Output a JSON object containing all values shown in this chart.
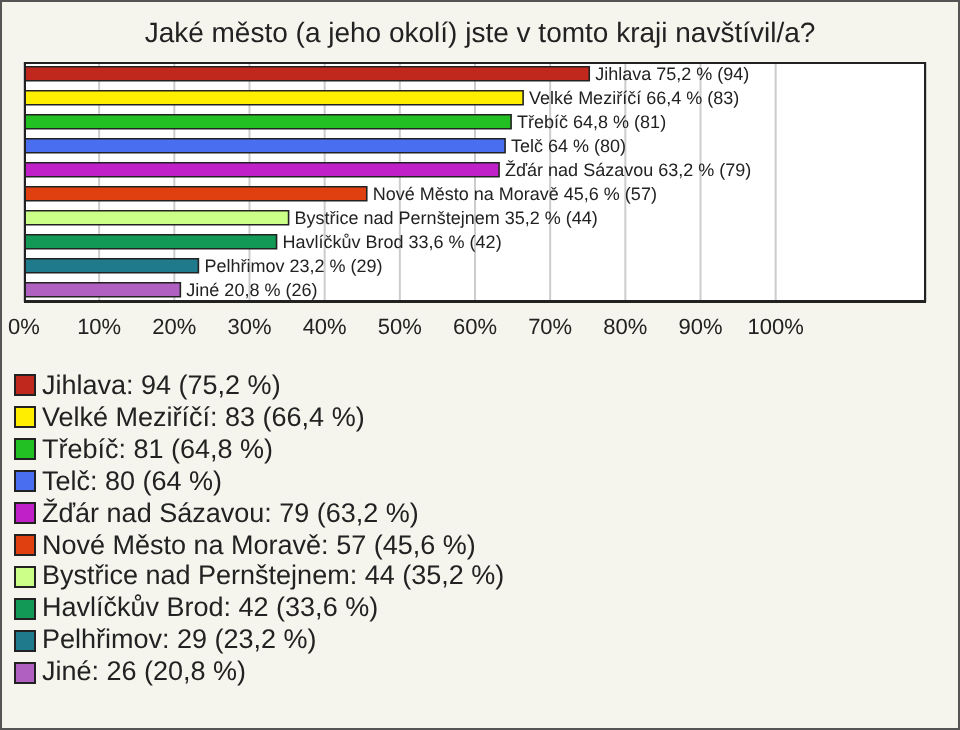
{
  "chart_data": {
    "type": "bar",
    "orientation": "horizontal",
    "stacked": true,
    "title": "Jaké město (a jeho okolí) jste v tomto kraji navštívil/a?",
    "categories": [
      null,
      null,
      null,
      null,
      null,
      null,
      null,
      null,
      null,
      null
    ],
    "series": [
      {
        "name": "Jihlava: 94 (75,2 %)",
        "color": "#c0281e",
        "values": [
          75.2,
          null,
          null,
          null,
          null,
          null,
          null,
          null,
          null,
          null
        ],
        "value_labels": [
          "Jihlava 75,2 % (94)",
          null,
          null,
          null,
          null,
          null,
          null,
          null,
          null,
          null
        ]
      },
      {
        "name": "Velké Meziříčí: 83 (66,4 %)",
        "color": "#ffee00",
        "values": [
          null,
          66.4,
          null,
          null,
          null,
          null,
          null,
          null,
          null,
          null
        ],
        "value_labels": [
          null,
          "Velké Meziříčí 66,4 % (83)",
          null,
          null,
          null,
          null,
          null,
          null,
          null,
          null
        ]
      },
      {
        "name": "Třebíč: 81 (64,8 %)",
        "color": "#22c022",
        "values": [
          null,
          null,
          64.8,
          null,
          null,
          null,
          null,
          null,
          null,
          null
        ],
        "value_labels": [
          null,
          null,
          "Třebíč 64,8 % (81)",
          null,
          null,
          null,
          null,
          null,
          null,
          null
        ]
      },
      {
        "name": "Telč: 80 (64 %)",
        "color": "#4a6ef0",
        "values": [
          null,
          null,
          null,
          64,
          null,
          null,
          null,
          null,
          null,
          null
        ],
        "value_labels": [
          null,
          null,
          null,
          "Telč 64 % (80)",
          null,
          null,
          null,
          null,
          null,
          null
        ]
      },
      {
        "name": "Žďár nad Sázavou: 79 (63,2 %)",
        "color": "#c020c8",
        "values": [
          null,
          null,
          null,
          null,
          63.2,
          null,
          null,
          null,
          null,
          null
        ],
        "value_labels": [
          null,
          null,
          null,
          null,
          "Žďár nad Sázavou 63,2 % (79)",
          null,
          null,
          null,
          null,
          null
        ]
      },
      {
        "name": "Nové Město na Moravě: 57 (45,6 %)",
        "color": "#e04010",
        "values": [
          null,
          null,
          null,
          null,
          null,
          45.6,
          null,
          null,
          null,
          null
        ],
        "value_labels": [
          null,
          null,
          null,
          null,
          null,
          "Nové Město na Moravě 45,6 % (57)",
          null,
          null,
          null,
          null
        ]
      },
      {
        "name": "Bystřice nad Pernštejnem: 44 (35,2 %)",
        "color": "#ccff88",
        "values": [
          null,
          null,
          null,
          null,
          null,
          null,
          35.2,
          null,
          null,
          null
        ],
        "value_labels": [
          null,
          null,
          null,
          null,
          null,
          null,
          "Bystřice nad Pernštejnem 35,2 % (44)",
          null,
          null,
          null
        ]
      },
      {
        "name": "Havlíčkův Brod: 42 (33,6 %)",
        "color": "#119955",
        "values": [
          null,
          null,
          null,
          null,
          null,
          null,
          null,
          33.6,
          null,
          null
        ],
        "value_labels": [
          null,
          null,
          null,
          null,
          null,
          null,
          null,
          "Havlíčkův Brod 33,6 % (42)",
          null,
          null
        ]
      },
      {
        "name": "Pelhřimov: 29 (23,2 %)",
        "color": "#1f7a8c",
        "values": [
          null,
          null,
          null,
          null,
          null,
          null,
          null,
          null,
          23.2,
          null
        ],
        "value_labels": [
          null,
          null,
          null,
          null,
          null,
          null,
          null,
          null,
          "Pelhřimov 23,2 % (29)",
          null
        ]
      },
      {
        "name": "Jiné: 26 (20,8 %)",
        "color": "#b060c0",
        "values": [
          null,
          null,
          null,
          null,
          null,
          null,
          null,
          null,
          null,
          20.8
        ],
        "value_labels": [
          null,
          null,
          null,
          null,
          null,
          null,
          null,
          null,
          null,
          "Jiné 20,8 % (26)"
        ]
      }
    ],
    "xlim": [
      0,
      120
    ],
    "xticks": [
      {
        "value": 0,
        "label": "0%"
      },
      {
        "value": 10,
        "label": "10%"
      },
      {
        "value": 20,
        "label": "20%"
      },
      {
        "value": 30,
        "label": "30%"
      },
      {
        "value": 40,
        "label": "40%"
      },
      {
        "value": 50,
        "label": "50%"
      },
      {
        "value": 60,
        "label": "60%"
      },
      {
        "value": 70,
        "label": "70%"
      },
      {
        "value": 80,
        "label": "80%"
      },
      {
        "value": 90,
        "label": "90%"
      },
      {
        "value": 100,
        "label": "100%"
      }
    ],
    "tick_labels": "x",
    "grid": "x",
    "legend": "bottom"
  }
}
